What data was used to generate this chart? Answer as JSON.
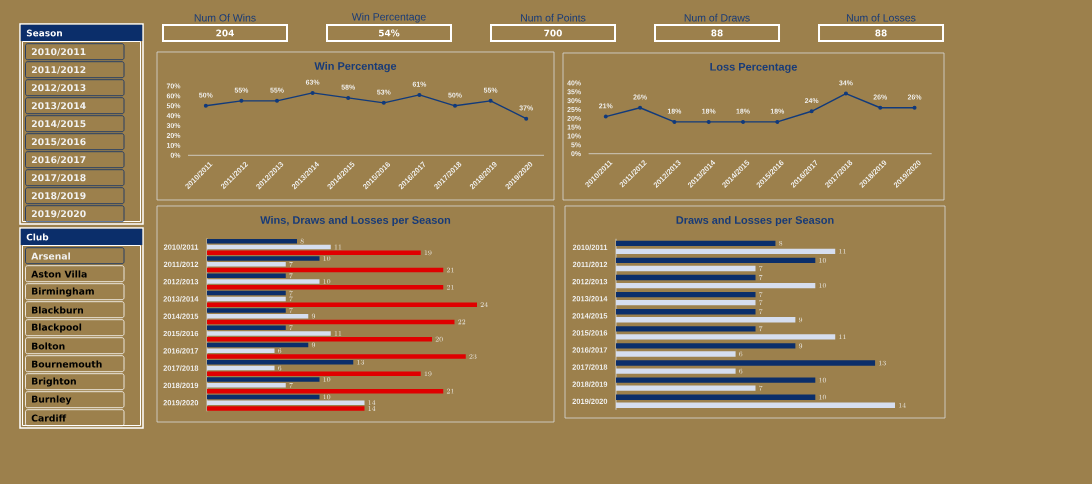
{
  "chart_data": [
    {
      "type": "other",
      "title": "Season",
      "categories": [
        "2010/2011",
        "2011/2012",
        "2012/2013",
        "2013/2014",
        "2014/2015",
        "2015/2016",
        "2016/2017",
        "2017/2018",
        "2018/2019",
        "2019/2020"
      ],
      "colors": [
        "#f2f2f2",
        "#f2f2f2",
        "#f2f2f2",
        "#f2f2f2",
        "#f2f2f2",
        "#f2f2f2",
        "#f2f2f2",
        "#f2f2f2",
        "#f2f2f2",
        "#f2f2f2"
      ]
    },
    {
      "type": "other",
      "title": "Club",
      "categories": [
        "Arsenal",
        "Aston Villa",
        "Birmingham",
        "Blackburn",
        "Blackpool",
        "Bolton",
        "Bournemouth",
        "Brighton",
        "Burnley",
        "Cardiff"
      ],
      "colors": [
        "#f2f2f2",
        "#000000",
        "#000000",
        "#000000",
        "#000000",
        "#000000",
        "#000000",
        "#000000",
        "#000000",
        "#000000"
      ]
    },
    {
      "type": "other",
      "title": "Num Of Wins",
      "annotations": [
        "204"
      ]
    },
    {
      "type": "other",
      "title": "Win Percentage",
      "annotations": [
        "54%"
      ]
    },
    {
      "type": "other",
      "title": "Num of Points",
      "annotations": [
        "700"
      ]
    },
    {
      "type": "other",
      "title": "Num of Draws",
      "annotations": [
        "88"
      ]
    },
    {
      "type": "other",
      "title": "Num of Losses",
      "annotations": [
        "88"
      ]
    },
    {
      "type": "line",
      "title": "Win Percentage",
      "categories": [
        "2010/2011",
        "2011/2012",
        "2012/2013",
        "2013/2014",
        "2014/2015",
        "2015/2016",
        "2016/2017",
        "2017/2018",
        "2018/2019",
        "2019/2020"
      ],
      "values": [
        50,
        55,
        55,
        63,
        58,
        53,
        61,
        50,
        55,
        37
      ],
      "value_labels": [
        "50%",
        "55%",
        "55%",
        "63%",
        "58%",
        "53%",
        "61%",
        "50%",
        "55%",
        "37%"
      ],
      "color": "#113a7c",
      "ylim": [
        0,
        70
      ],
      "yticks": [
        {
          "value": 0,
          "label": "0%"
        },
        {
          "value": 10,
          "label": "10%"
        },
        {
          "value": 20,
          "label": "20%"
        },
        {
          "value": 30,
          "label": "30%"
        },
        {
          "value": 40,
          "label": "40%"
        },
        {
          "value": 50,
          "label": "50%"
        },
        {
          "value": 60,
          "label": "60%"
        },
        {
          "value": 70,
          "label": "70%"
        }
      ],
      "marker": "circle",
      "line_style": "solid"
    },
    {
      "type": "line",
      "title": "Loss Percentage",
      "categories": [
        "2010/2011",
        "2011/2012",
        "2012/2013",
        "2013/2014",
        "2014/2015",
        "2015/2016",
        "2016/2017",
        "2017/2018",
        "2018/2019",
        "2019/2020"
      ],
      "values": [
        21,
        26,
        18,
        18,
        18,
        18,
        24,
        34,
        26,
        26
      ],
      "value_labels": [
        "21%",
        "26%",
        "18%",
        "18%",
        "18%",
        "18%",
        "24%",
        "34%",
        "26%",
        "26%"
      ],
      "color": "#113a7c",
      "ylim": [
        0,
        40
      ],
      "yticks": [
        {
          "value": 0,
          "label": "0%"
        },
        {
          "value": 5,
          "label": "5%"
        },
        {
          "value": 10,
          "label": "10%"
        },
        {
          "value": 15,
          "label": "15%"
        },
        {
          "value": 20,
          "label": "20%"
        },
        {
          "value": 25,
          "label": "25%"
        },
        {
          "value": 30,
          "label": "30%"
        },
        {
          "value": 35,
          "label": "35%"
        },
        {
          "value": 40,
          "label": "40%"
        }
      ],
      "marker": "circle",
      "line_style": "solid"
    },
    {
      "type": "bar",
      "orientation": "horizontal",
      "title": "Wins, Draws and Losses per Season",
      "categories": [
        "2010/2011",
        "2011/2012",
        "2012/2013",
        "2013/2014",
        "2014/2015",
        "2015/2016",
        "2016/2017",
        "2017/2018",
        "2018/2019",
        "2019/2020"
      ],
      "series": [
        {
          "color": "#0b2e6a",
          "values": [
            8,
            10,
            7,
            7,
            7,
            7,
            9,
            13,
            10,
            10
          ]
        },
        {
          "color": "#d6deef",
          "values": [
            11,
            7,
            10,
            7,
            9,
            11,
            6,
            6,
            7,
            14
          ]
        },
        {
          "color": "#e00000",
          "values": [
            19,
            21,
            21,
            24,
            22,
            20,
            23,
            19,
            21,
            14
          ]
        }
      ],
      "data_labels": true,
      "tick_labels": "y"
    },
    {
      "type": "bar",
      "orientation": "horizontal",
      "title": "Draws and Losses per Season",
      "categories": [
        "2010/2011",
        "2011/2012",
        "2012/2013",
        "2013/2014",
        "2014/2015",
        "2015/2016",
        "2016/2017",
        "2017/2018",
        "2018/2019",
        "2019/2020"
      ],
      "series": [
        {
          "color": "#0b2e6a",
          "values": [
            8,
            10,
            7,
            7,
            7,
            7,
            9,
            13,
            10,
            10
          ]
        },
        {
          "color": "#d6deef",
          "values": [
            11,
            7,
            10,
            7,
            9,
            11,
            6,
            6,
            7,
            14
          ]
        }
      ],
      "data_labels": true,
      "tick_labels": "y"
    }
  ]
}
